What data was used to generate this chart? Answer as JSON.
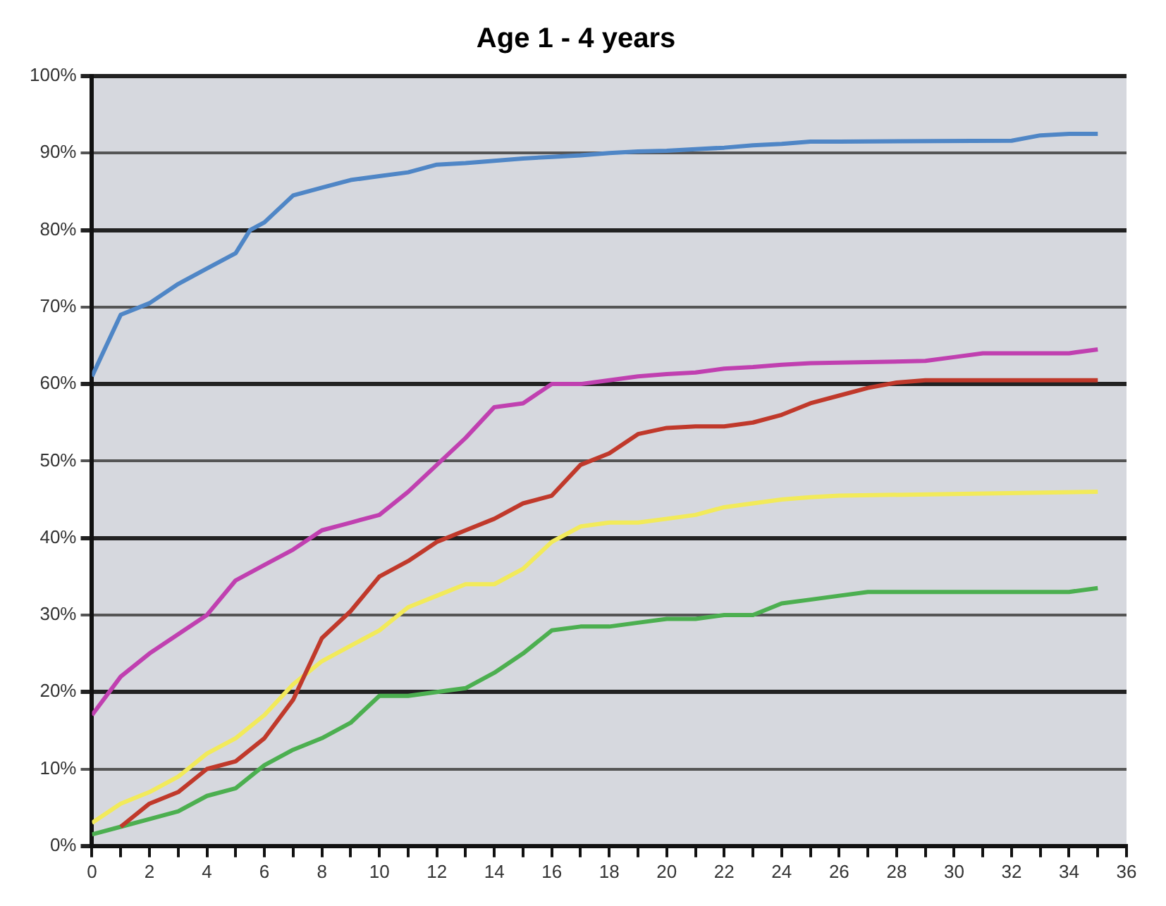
{
  "chart_data": {
    "type": "line",
    "title": "Age 1 - 4 years",
    "xlim": [
      0,
      36
    ],
    "xticks": [
      0,
      {
        "value": 1,
        "label": null
      },
      2,
      {
        "value": 3,
        "label": null
      },
      4,
      {
        "value": 5,
        "label": null
      },
      6,
      {
        "value": 7,
        "label": null
      },
      8,
      {
        "value": 9,
        "label": null
      },
      10,
      {
        "value": 11,
        "label": null
      },
      12,
      {
        "value": 13,
        "label": null
      },
      14,
      {
        "value": 15,
        "label": null
      },
      16,
      {
        "value": 17,
        "label": null
      },
      18,
      {
        "value": 19,
        "label": null
      },
      20,
      {
        "value": 21,
        "label": null
      },
      22,
      {
        "value": 23,
        "label": null
      },
      24,
      {
        "value": 25,
        "label": null
      },
      26,
      {
        "value": 27,
        "label": null
      },
      28,
      {
        "value": 29,
        "label": null
      },
      30,
      {
        "value": 31,
        "label": null
      },
      32,
      {
        "value": 33,
        "label": null
      },
      34,
      {
        "value": 35,
        "label": null
      },
      36
    ],
    "ylim": [
      0,
      100
    ],
    "yticks": [
      {
        "value": 0,
        "label": "0%"
      },
      {
        "value": 10,
        "label": "10%"
      },
      {
        "value": 20,
        "label": "20%"
      },
      {
        "value": 30,
        "label": "30%"
      },
      {
        "value": 40,
        "label": "40%"
      },
      {
        "value": 50,
        "label": "50%"
      },
      {
        "value": 60,
        "label": "60%"
      },
      {
        "value": 70,
        "label": "70%"
      },
      {
        "value": 80,
        "label": "80%"
      },
      {
        "value": 90,
        "label": "90%"
      },
      {
        "value": 100,
        "label": "100%"
      }
    ],
    "grid": "y",
    "legend": false,
    "marker": "none",
    "line_style": "solid",
    "series": [
      {
        "color": "#4f86c6",
        "x": [
          0,
          1,
          2,
          3,
          4,
          5,
          5.5,
          6,
          7,
          8,
          9,
          10,
          11,
          12,
          13,
          14,
          15,
          16,
          17,
          18,
          19,
          20,
          21,
          22,
          23,
          24,
          25,
          26,
          32,
          33,
          34,
          35
        ],
        "values": [
          61,
          69,
          70.5,
          73,
          75,
          77,
          80,
          81,
          84.5,
          85.5,
          86.5,
          87,
          87.5,
          88.5,
          88.7,
          89,
          89.3,
          89.5,
          89.7,
          90,
          90.2,
          90.3,
          90.5,
          90.7,
          91,
          91.2,
          91.5,
          91.5,
          91.6,
          92.3,
          92.5,
          92.5
        ]
      },
      {
        "color": "#c040b0",
        "x": [
          0,
          1,
          2,
          3,
          4,
          5,
          6,
          7,
          8,
          9,
          10,
          11,
          12,
          13,
          14,
          15,
          16,
          17,
          18,
          19,
          20,
          21,
          22,
          23,
          24,
          25,
          29,
          30,
          31,
          33,
          34,
          35
        ],
        "values": [
          17,
          22,
          25,
          27.5,
          30,
          34.5,
          36.5,
          38.5,
          41,
          42,
          43,
          46,
          49.5,
          53,
          57,
          57.5,
          60,
          60,
          60.5,
          61,
          61.3,
          61.5,
          62,
          62.2,
          62.5,
          62.7,
          63,
          63.5,
          64,
          64,
          64,
          64.5
        ]
      },
      {
        "color": "#c0392b",
        "x": [
          1,
          2,
          3,
          4,
          5,
          6,
          7,
          8,
          9,
          10,
          11,
          12,
          13,
          14,
          15,
          16,
          17,
          18,
          19,
          20,
          21,
          22,
          23,
          24,
          25,
          26,
          27,
          28,
          29,
          35
        ],
        "values": [
          2.5,
          5.5,
          7,
          10,
          11,
          14,
          19,
          27,
          30.5,
          35,
          37,
          39.5,
          41,
          42.5,
          44.5,
          45.5,
          49.5,
          51,
          53.5,
          54.3,
          54.5,
          54.5,
          55,
          56,
          57.5,
          58.5,
          59.5,
          60.2,
          60.5,
          60.5
        ]
      },
      {
        "color": "#f2ea5a",
        "x": [
          0,
          1,
          2,
          3,
          4,
          5,
          6,
          7,
          8,
          9,
          10,
          11,
          12,
          13,
          14,
          15,
          16,
          17,
          18,
          19,
          20,
          21,
          22,
          23,
          24,
          25,
          26,
          35
        ],
        "values": [
          3,
          5.5,
          7,
          9,
          12,
          14,
          17,
          21,
          24,
          26,
          28,
          31,
          32.5,
          34,
          34,
          36,
          39.5,
          41.5,
          42,
          42,
          42.5,
          43,
          44,
          44.5,
          45,
          45.3,
          45.5,
          46
        ]
      },
      {
        "color": "#4caf50",
        "x": [
          0,
          1,
          2,
          3,
          4,
          5,
          6,
          7,
          8,
          9,
          10,
          11,
          12,
          13,
          14,
          15,
          16,
          17,
          18,
          19,
          20,
          21,
          22,
          23,
          24,
          25,
          26,
          27,
          33,
          34,
          35
        ],
        "values": [
          1.5,
          2.5,
          3.5,
          4.5,
          6.5,
          7.5,
          10.5,
          12.5,
          14,
          16,
          19.5,
          19.5,
          20,
          20.5,
          22.5,
          25,
          28,
          28.5,
          28.5,
          29,
          29.5,
          29.5,
          30,
          30,
          31.5,
          32,
          32.5,
          33,
          33,
          33,
          33.5
        ]
      }
    ]
  }
}
